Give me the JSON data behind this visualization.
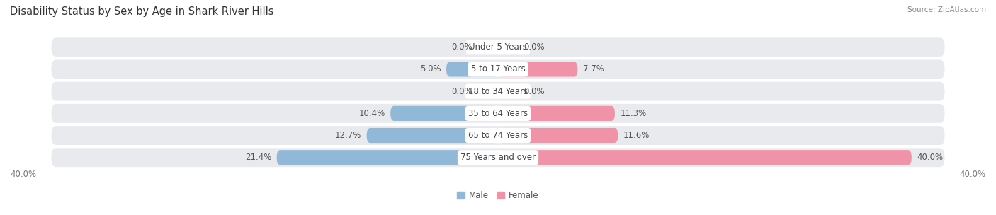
{
  "title": "Disability Status by Sex by Age in Shark River Hills",
  "source": "Source: ZipAtlas.com",
  "categories": [
    "Under 5 Years",
    "5 to 17 Years",
    "18 to 34 Years",
    "35 to 64 Years",
    "65 to 74 Years",
    "75 Years and over"
  ],
  "male_values": [
    0.0,
    5.0,
    0.0,
    10.4,
    12.7,
    21.4
  ],
  "female_values": [
    0.0,
    7.7,
    0.0,
    11.3,
    11.6,
    40.0
  ],
  "male_color": "#92b8d8",
  "female_color": "#f093a8",
  "row_bg_color": "#e8eaed",
  "row_sep_color": "#ffffff",
  "max_value": 40.0,
  "axis_label_left": "40.0%",
  "axis_label_right": "40.0%",
  "legend_male": "Male",
  "legend_female": "Female",
  "title_fontsize": 10.5,
  "label_fontsize": 8.5,
  "category_fontsize": 8.5,
  "source_fontsize": 7.5
}
